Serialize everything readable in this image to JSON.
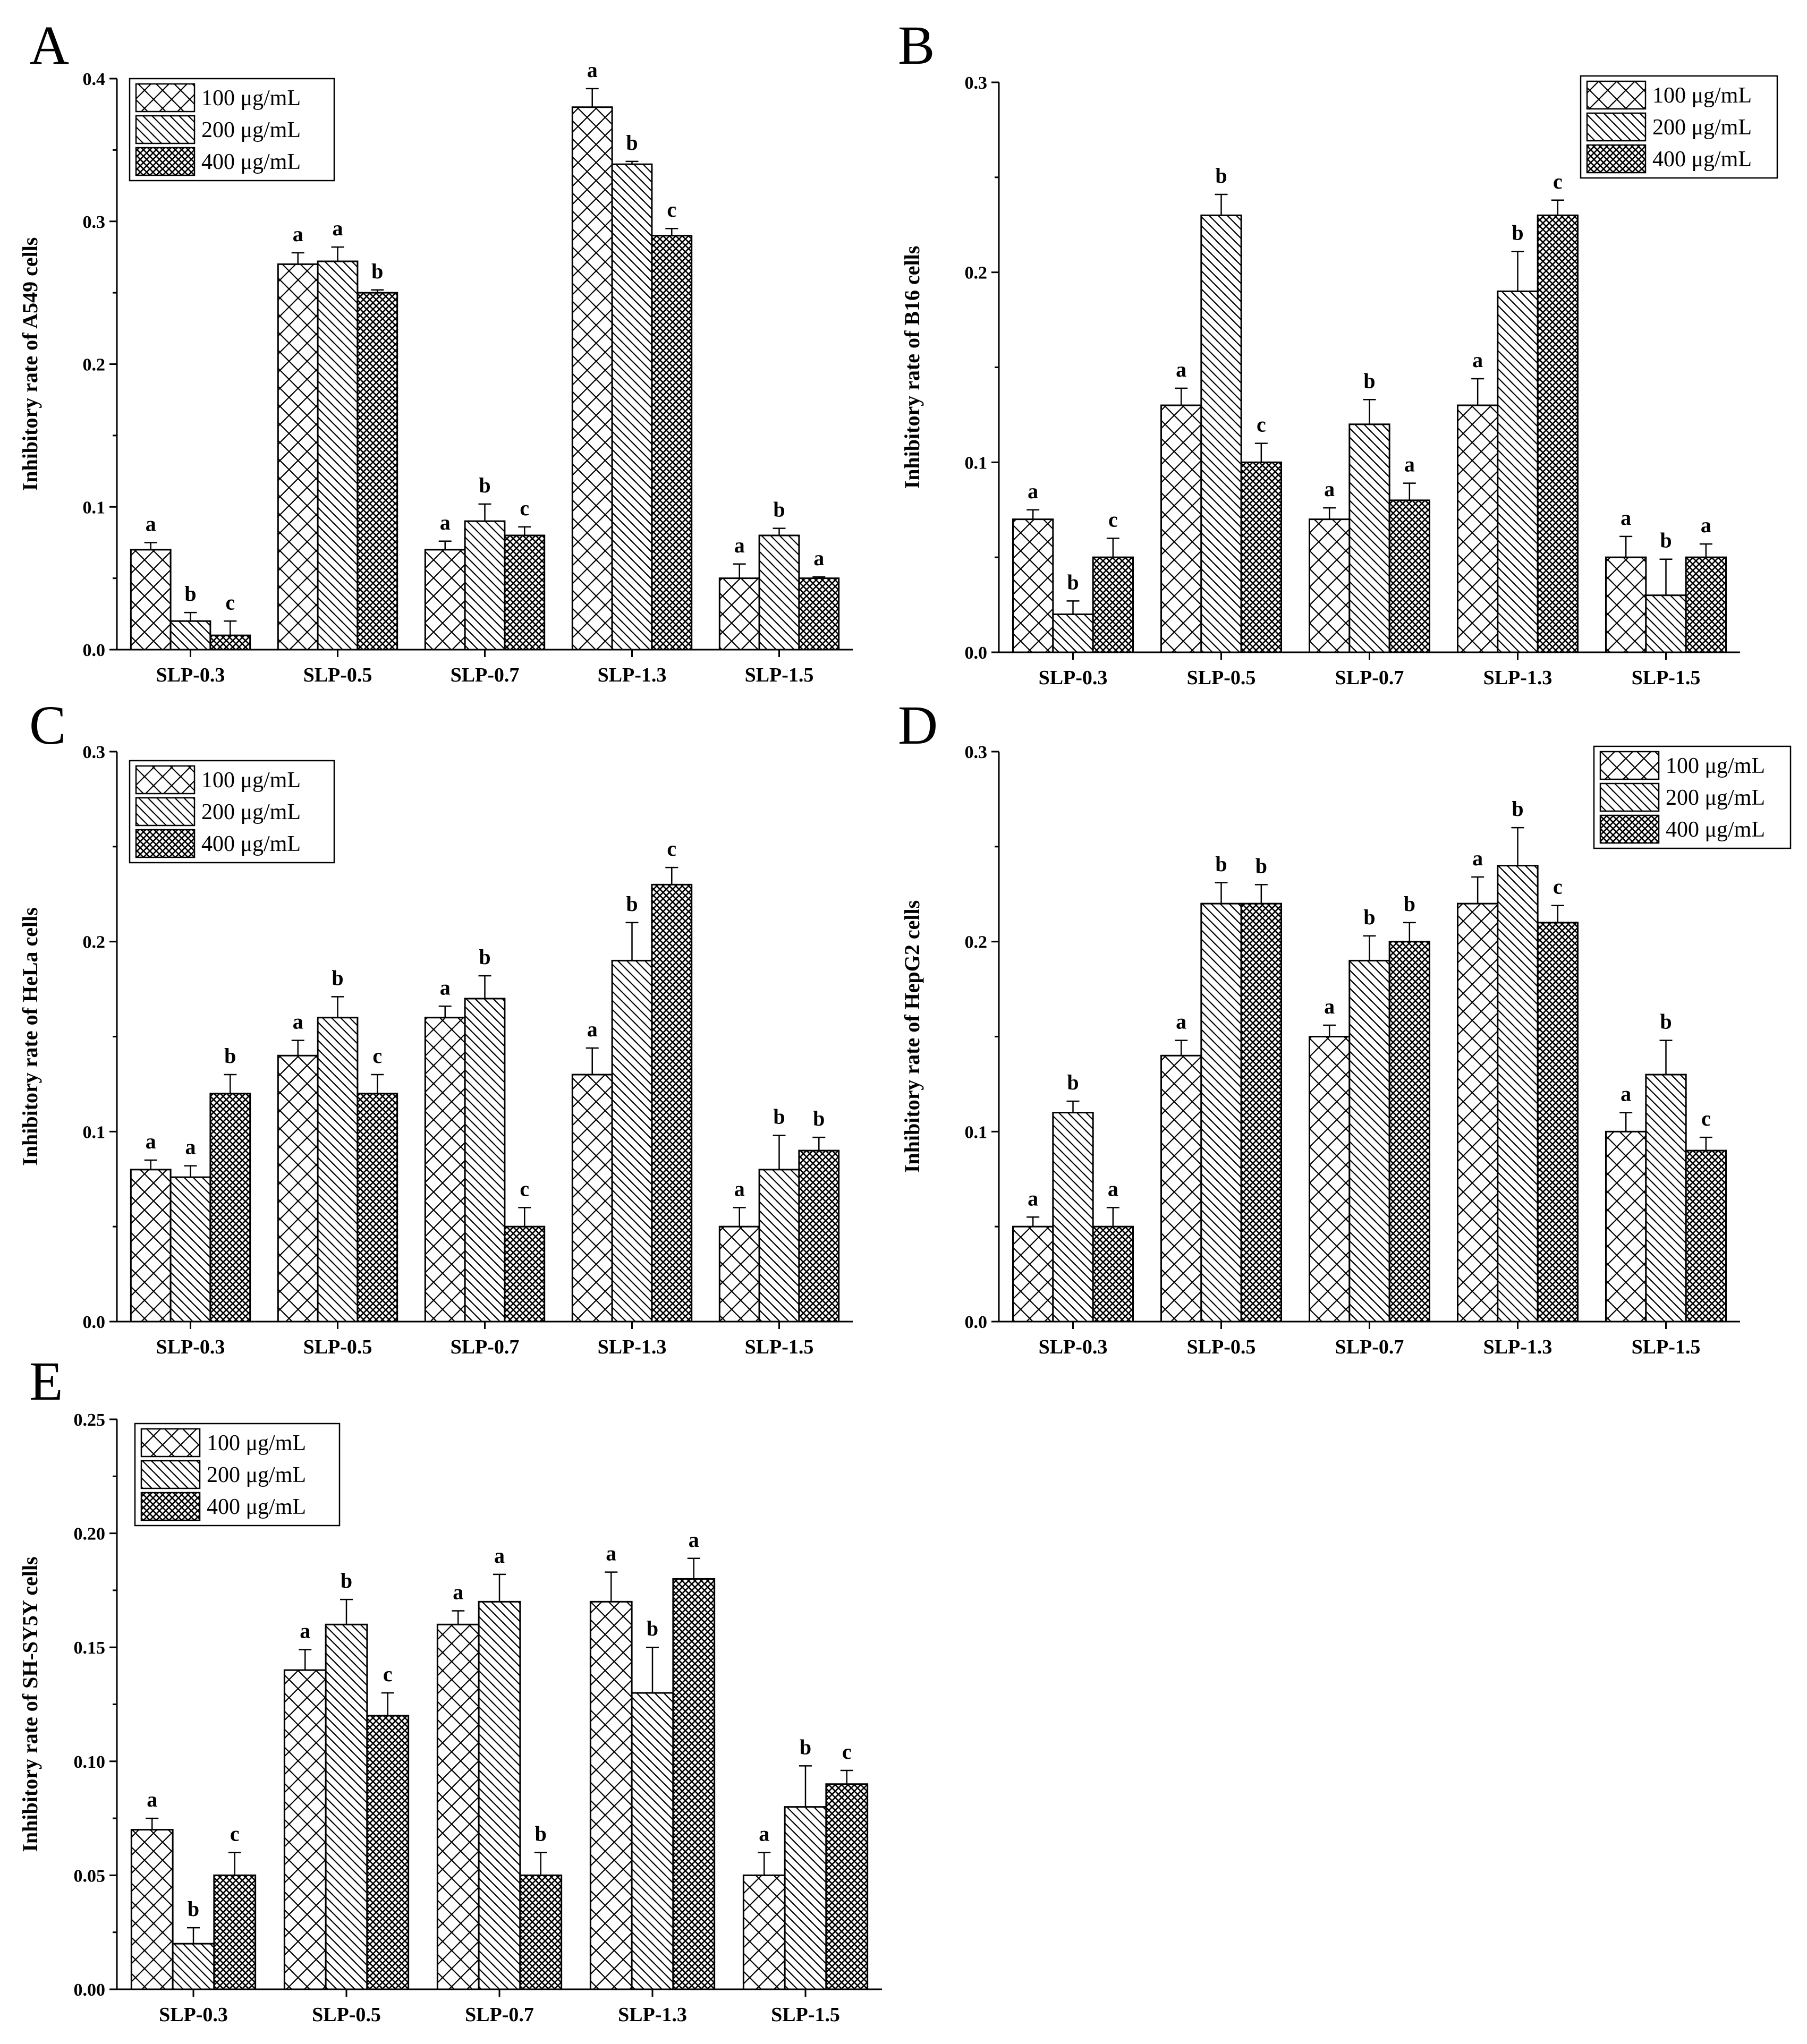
{
  "figure": {
    "legend_labels": [
      "100 μg/mL",
      "200 μg/mL",
      "400 μg/mL"
    ]
  },
  "chart_data": [
    {
      "panel": "A",
      "type": "bar",
      "title": "",
      "xlabel": "",
      "ylabel": "Inhibitory rate of A549 cells",
      "ylim": [
        0,
        0.4
      ],
      "yticks": [
        "0.0",
        "0.1",
        "0.2",
        "0.3",
        "0.4"
      ],
      "categories": [
        "SLP-0.3",
        "SLP-0.5",
        "SLP-0.7",
        "SLP-1.3",
        "SLP-1.5"
      ],
      "legend_position": "top-left",
      "series": [
        {
          "name": "100 μg/mL",
          "values": [
            0.07,
            0.27,
            0.07,
            0.38,
            0.05
          ],
          "errors": [
            0.005,
            0.008,
            0.006,
            0.013,
            0.01
          ],
          "letters": [
            "a",
            "a",
            "a",
            "a",
            "a"
          ]
        },
        {
          "name": "200 μg/mL",
          "values": [
            0.02,
            0.272,
            0.09,
            0.34,
            0.08
          ],
          "errors": [
            0.006,
            0.01,
            0.012,
            0.002,
            0.005
          ],
          "letters": [
            "b",
            "a",
            "b",
            "b",
            "b"
          ]
        },
        {
          "name": "400 μg/mL",
          "values": [
            0.01,
            0.25,
            0.08,
            0.29,
            0.05
          ],
          "errors": [
            0.01,
            0.002,
            0.006,
            0.005,
            0.001
          ],
          "letters": [
            "c",
            "b",
            "c",
            "c",
            "a"
          ]
        }
      ]
    },
    {
      "panel": "B",
      "type": "bar",
      "title": "",
      "xlabel": "",
      "ylabel": "Inhibitory rate of B16 cells",
      "ylim": [
        0,
        0.3
      ],
      "yticks": [
        "0.0",
        "0.1",
        "0.2",
        "0.3"
      ],
      "categories": [
        "SLP-0.3",
        "SLP-0.5",
        "SLP-0.7",
        "SLP-1.3",
        "SLP-1.5"
      ],
      "legend_position": "top-right",
      "series": [
        {
          "name": "100 μg/mL",
          "values": [
            0.07,
            0.13,
            0.07,
            0.13,
            0.05
          ],
          "errors": [
            0.005,
            0.009,
            0.006,
            0.014,
            0.011
          ],
          "letters": [
            "a",
            "a",
            "a",
            "a",
            "a"
          ]
        },
        {
          "name": "200 μg/mL",
          "values": [
            0.02,
            0.23,
            0.12,
            0.19,
            0.03
          ],
          "errors": [
            0.007,
            0.011,
            0.013,
            0.021,
            0.019
          ],
          "letters": [
            "b",
            "b",
            "b",
            "b",
            "b"
          ]
        },
        {
          "name": "400 μg/mL",
          "values": [
            0.05,
            0.1,
            0.08,
            0.23,
            0.05
          ],
          "errors": [
            0.01,
            0.01,
            0.009,
            0.008,
            0.007
          ],
          "letters": [
            "c",
            "c",
            "a",
            "c",
            "a"
          ]
        }
      ]
    },
    {
      "panel": "C",
      "type": "bar",
      "title": "",
      "xlabel": "",
      "ylabel": "Inhibitory rate of HeLa cells",
      "ylim": [
        0,
        0.3
      ],
      "yticks": [
        "0.0",
        "0.1",
        "0.2",
        "0.3"
      ],
      "categories": [
        "SLP-0.3",
        "SLP-0.5",
        "SLP-0.7",
        "SLP-1.3",
        "SLP-1.5"
      ],
      "legend_position": "top-left",
      "series": [
        {
          "name": "100 μg/mL",
          "values": [
            0.08,
            0.14,
            0.16,
            0.13,
            0.05
          ],
          "errors": [
            0.005,
            0.008,
            0.006,
            0.014,
            0.01
          ],
          "letters": [
            "a",
            "a",
            "a",
            "a",
            "a"
          ]
        },
        {
          "name": "200 μg/mL",
          "values": [
            0.076,
            0.16,
            0.17,
            0.19,
            0.08
          ],
          "errors": [
            0.006,
            0.011,
            0.012,
            0.02,
            0.018
          ],
          "letters": [
            "a",
            "b",
            "b",
            "b",
            "b"
          ]
        },
        {
          "name": "400 μg/mL",
          "values": [
            0.12,
            0.12,
            0.05,
            0.23,
            0.09
          ],
          "errors": [
            0.01,
            0.01,
            0.01,
            0.009,
            0.007
          ],
          "letters": [
            "b",
            "c",
            "c",
            "c",
            "b"
          ]
        }
      ]
    },
    {
      "panel": "D",
      "type": "bar",
      "title": "",
      "xlabel": "",
      "ylabel": "Inhibitory rate of HepG2 cells",
      "ylim": [
        0,
        0.3
      ],
      "yticks": [
        "0.0",
        "0.1",
        "0.2",
        "0.3"
      ],
      "categories": [
        "SLP-0.3",
        "SLP-0.5",
        "SLP-0.7",
        "SLP-1.3",
        "SLP-1.5"
      ],
      "legend_position": "top-right",
      "series": [
        {
          "name": "100 μg/mL",
          "values": [
            0.05,
            0.14,
            0.15,
            0.22,
            0.1
          ],
          "errors": [
            0.005,
            0.008,
            0.006,
            0.014,
            0.01
          ],
          "letters": [
            "a",
            "a",
            "a",
            "a",
            "a"
          ]
        },
        {
          "name": "200 μg/mL",
          "values": [
            0.11,
            0.22,
            0.19,
            0.24,
            0.13
          ],
          "errors": [
            0.006,
            0.011,
            0.013,
            0.02,
            0.018
          ],
          "letters": [
            "b",
            "b",
            "b",
            "b",
            "b"
          ]
        },
        {
          "name": "400 μg/mL",
          "values": [
            0.05,
            0.22,
            0.2,
            0.21,
            0.09
          ],
          "errors": [
            0.01,
            0.01,
            0.01,
            0.009,
            0.007
          ],
          "letters": [
            "a",
            "b",
            "b",
            "c",
            "c"
          ]
        }
      ]
    },
    {
      "panel": "E",
      "type": "bar",
      "title": "",
      "xlabel": "",
      "ylabel": "Inhibitory rate of SH-SY5Y cells",
      "ylim": [
        0,
        0.25
      ],
      "yticks": [
        "0.00",
        "0.05",
        "0.10",
        "0.15",
        "0.20",
        "0.25"
      ],
      "categories": [
        "SLP-0.3",
        "SLP-0.5",
        "SLP-0.7",
        "SLP-1.3",
        "SLP-1.5"
      ],
      "legend_position": "top-left",
      "series": [
        {
          "name": "100 μg/mL",
          "values": [
            0.07,
            0.14,
            0.16,
            0.17,
            0.05
          ],
          "errors": [
            0.005,
            0.009,
            0.006,
            0.013,
            0.01
          ],
          "letters": [
            "a",
            "a",
            "a",
            "a",
            "a"
          ]
        },
        {
          "name": "200 μg/mL",
          "values": [
            0.02,
            0.16,
            0.17,
            0.13,
            0.08
          ],
          "errors": [
            0.007,
            0.011,
            0.012,
            0.02,
            0.018
          ],
          "letters": [
            "b",
            "b",
            "a",
            "b",
            "b"
          ]
        },
        {
          "name": "400 μg/mL",
          "values": [
            0.05,
            0.12,
            0.05,
            0.18,
            0.09
          ],
          "errors": [
            0.01,
            0.01,
            0.01,
            0.009,
            0.006
          ],
          "letters": [
            "c",
            "c",
            "b",
            "a",
            "c"
          ]
        }
      ]
    }
  ]
}
